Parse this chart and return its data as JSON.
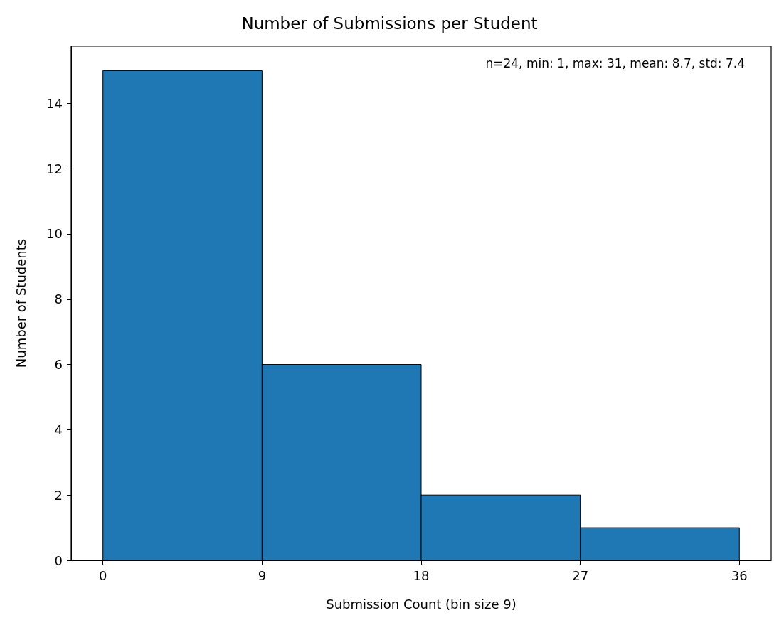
{
  "chart_data": {
    "type": "histogram",
    "title": "Number of Submissions per Student",
    "xlabel": "Submission Count (bin size 9)",
    "ylabel": "Number of Students",
    "bins": [
      0,
      9,
      18,
      27,
      36
    ],
    "values": [
      15,
      6,
      2,
      1
    ],
    "color": "#1f77b4",
    "xlim": [
      -1.8,
      37.8
    ],
    "xticks": [
      0,
      9,
      18,
      27,
      36
    ],
    "ylim": [
      0,
      15.75
    ],
    "yticks": [
      0,
      2,
      4,
      6,
      8,
      10,
      12,
      14
    ],
    "grid": false,
    "annotations": [
      "n=24, min: 1, max: 31, mean: 8.7, std: 7.4"
    ]
  }
}
